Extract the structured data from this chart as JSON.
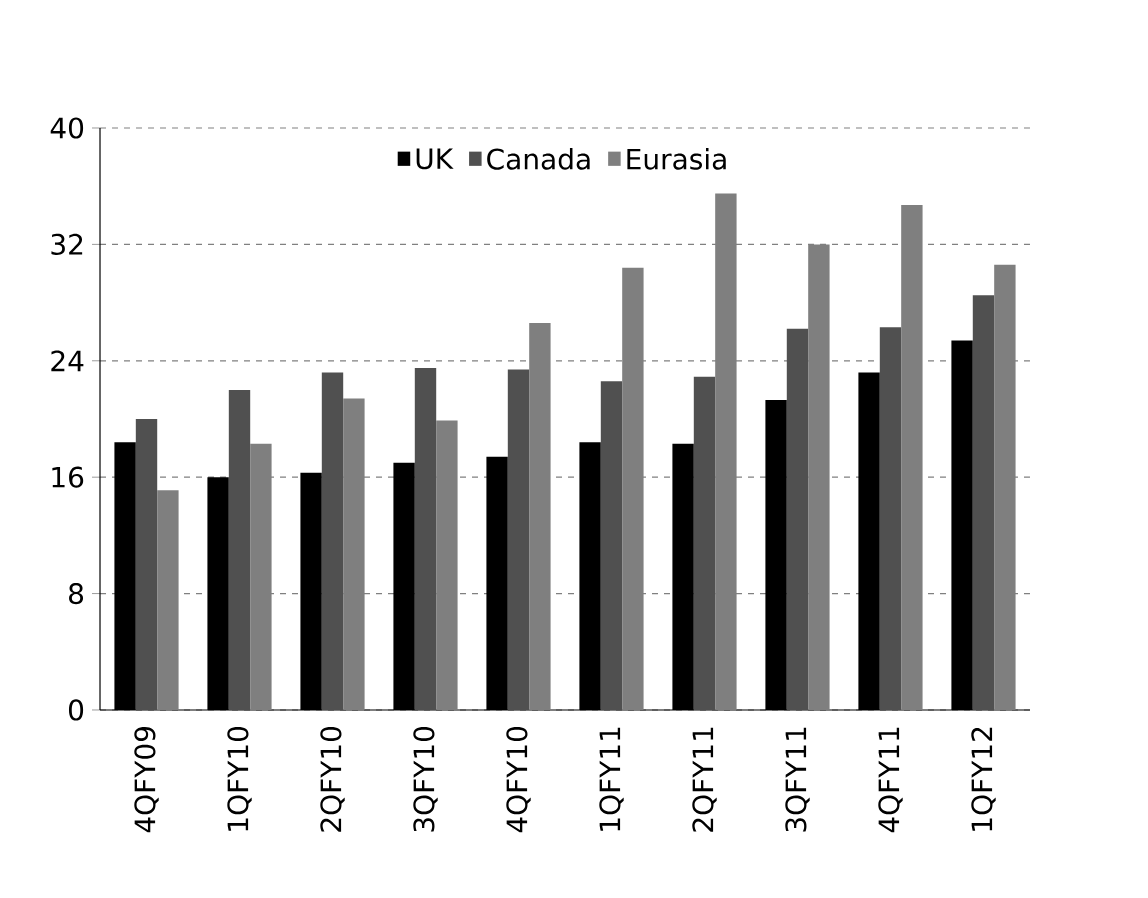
{
  "chart_data": {
    "type": "bar",
    "categories": [
      "4QFY09",
      "1QFY10",
      "2QFY10",
      "3QFY10",
      "4QFY10",
      "1QFY11",
      "2QFY11",
      "3QFY11",
      "4QFY11",
      "1QFY12"
    ],
    "series": [
      {
        "name": "UK",
        "color": "#000000",
        "values": [
          18.4,
          16.0,
          16.3,
          17.0,
          17.4,
          18.4,
          18.3,
          21.3,
          23.2,
          25.4
        ]
      },
      {
        "name": "Canada",
        "color": "#505050",
        "values": [
          20.0,
          22.0,
          23.2,
          23.5,
          23.4,
          22.6,
          22.9,
          26.2,
          26.3,
          28.5
        ]
      },
      {
        "name": "Eurasia",
        "color": "#7f7f7f",
        "values": [
          15.1,
          18.3,
          21.4,
          19.9,
          26.6,
          30.4,
          35.5,
          32.0,
          34.7,
          30.6
        ]
      }
    ],
    "ylim": [
      0,
      40
    ],
    "yticks": [
      0,
      8,
      16,
      24,
      32,
      40
    ],
    "grid": "y",
    "legend": "top"
  }
}
